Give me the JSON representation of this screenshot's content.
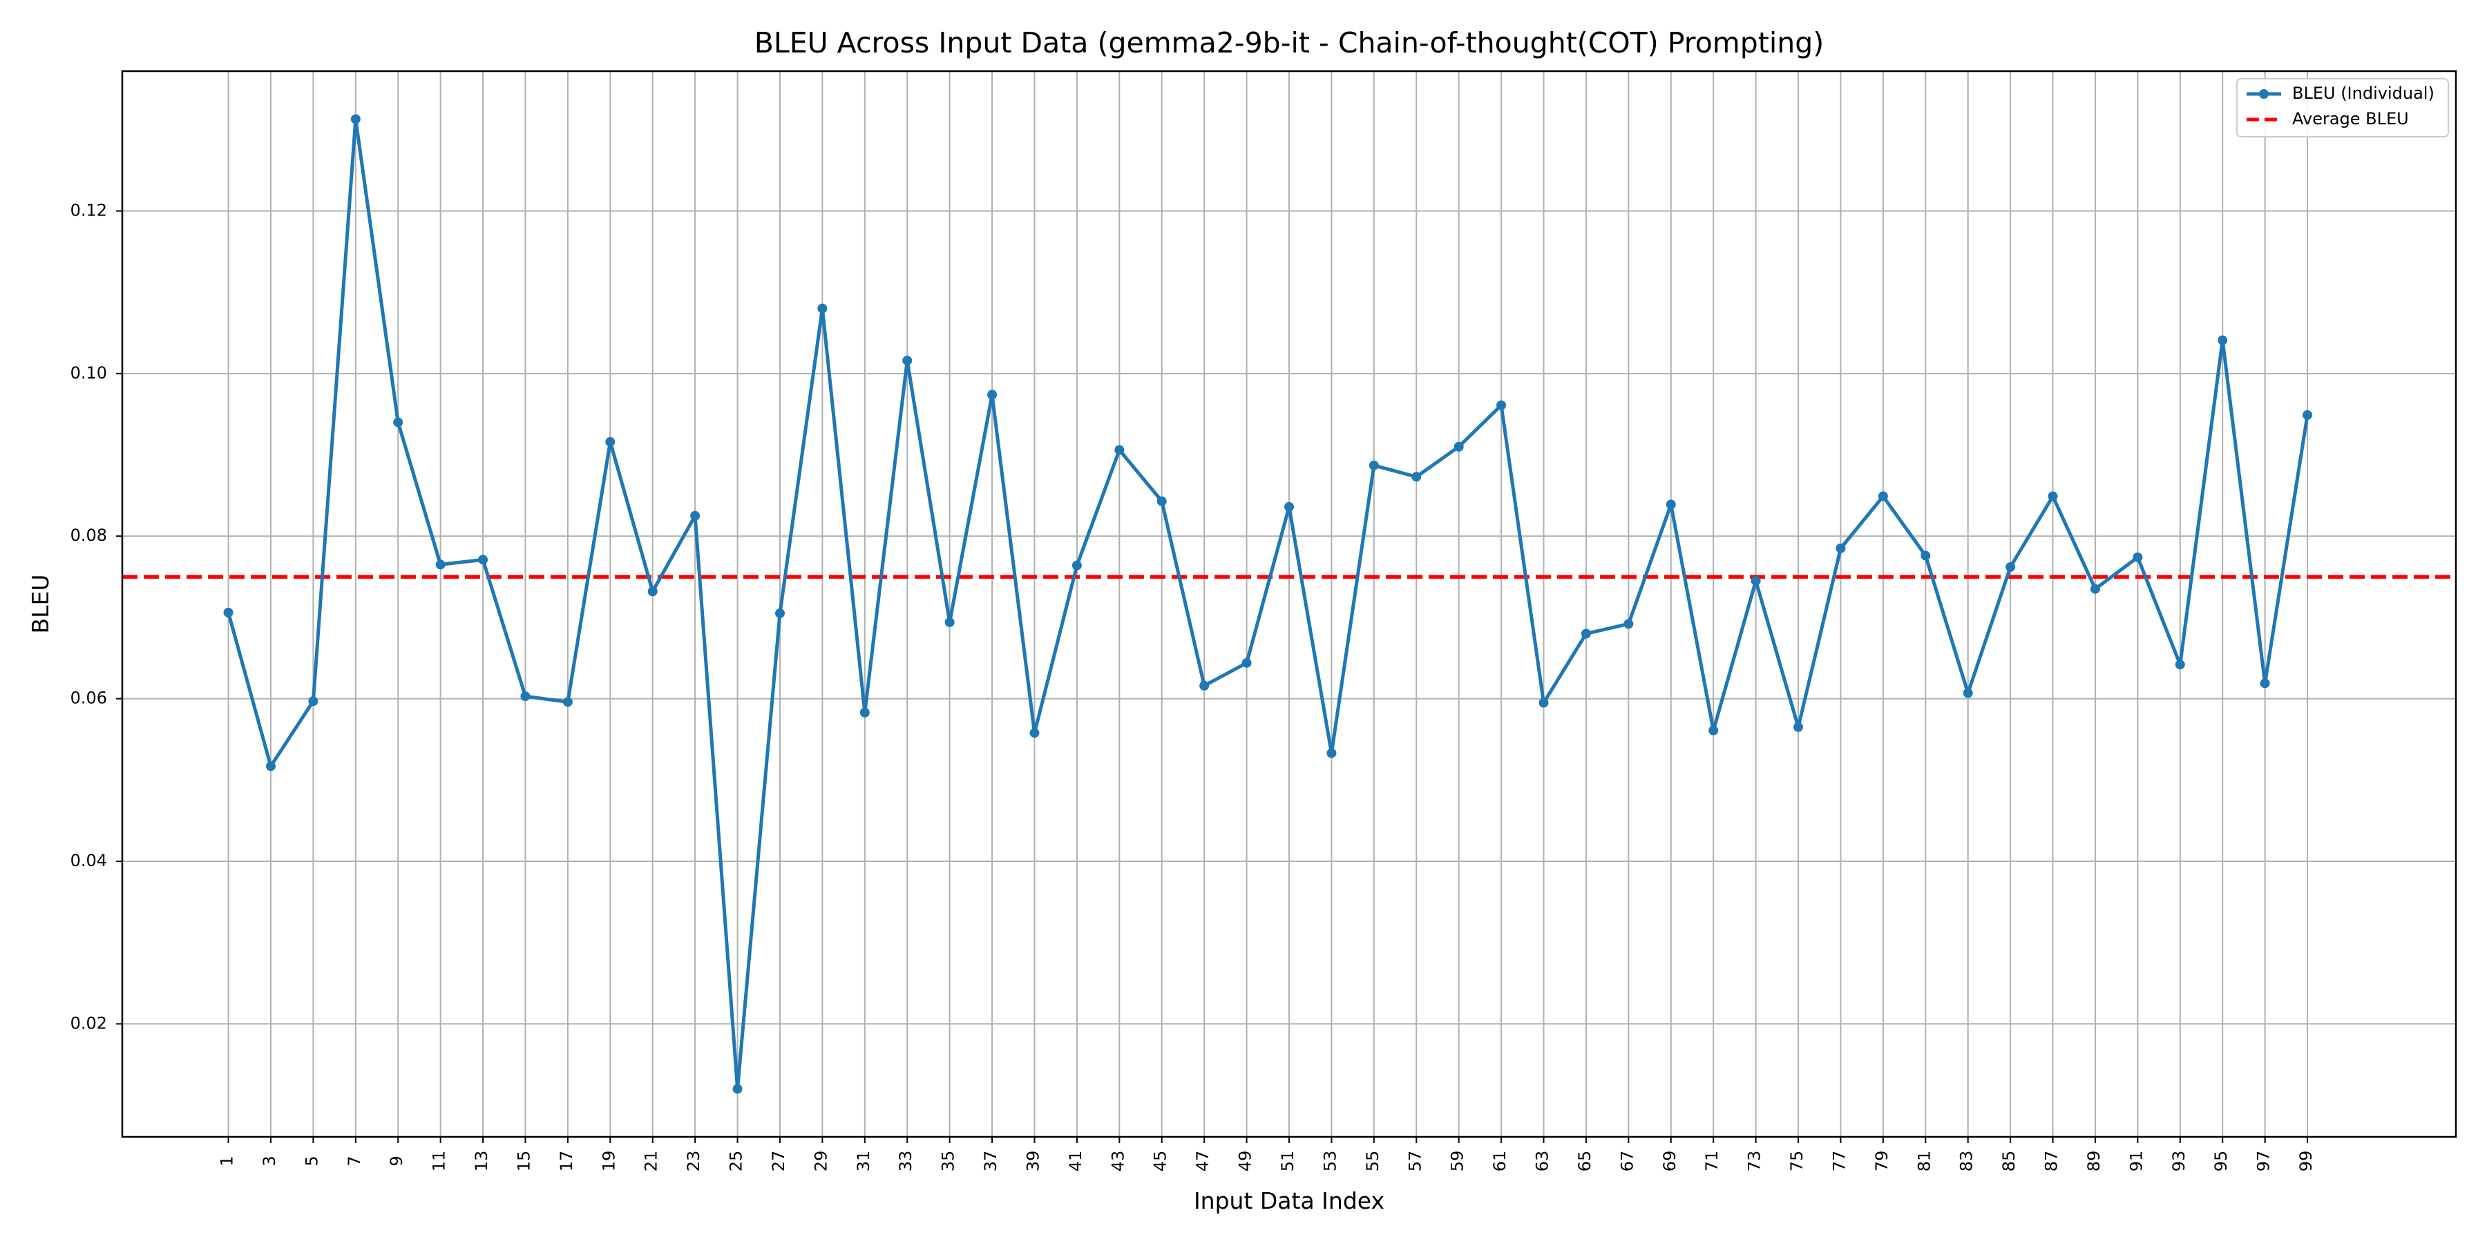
{
  "chart_data": {
    "type": "line",
    "title": "BLEU Across Input Data (gemma2-9b-it - Chain-of-thought(COT) Prompting)",
    "xlabel": "Input Data Index",
    "ylabel": "BLEU",
    "x": [
      1,
      3,
      5,
      7,
      9,
      11,
      13,
      15,
      17,
      19,
      21,
      23,
      25,
      27,
      29,
      31,
      33,
      35,
      37,
      39,
      41,
      43,
      45,
      47,
      49,
      51,
      53,
      55,
      57,
      59,
      61,
      63,
      65,
      67,
      69,
      71,
      73,
      75,
      77,
      79,
      81,
      83,
      85,
      87,
      89,
      91,
      93,
      95,
      97,
      99
    ],
    "xticks": [
      "1",
      "3",
      "5",
      "7",
      "9",
      "11",
      "13",
      "15",
      "17",
      "19",
      "21",
      "23",
      "25",
      "27",
      "29",
      "31",
      "33",
      "35",
      "37",
      "39",
      "41",
      "43",
      "45",
      "47",
      "49",
      "51",
      "53",
      "55",
      "57",
      "59",
      "61",
      "63",
      "65",
      "67",
      "69",
      "71",
      "73",
      "75",
      "77",
      "79",
      "81",
      "83",
      "85",
      "87",
      "89",
      "91",
      "93",
      "95",
      "97",
      "99"
    ],
    "yticks": [
      "0.02",
      "0.04",
      "0.06",
      "0.08",
      "0.10",
      "0.12"
    ],
    "ytick_values": [
      0.02,
      0.04,
      0.06,
      0.08,
      0.1,
      0.12
    ],
    "xlim": [
      -4.0,
      106.0
    ],
    "ylim": [
      0.0061,
      0.1372
    ],
    "grid": true,
    "legend_position": "top-right",
    "series": [
      {
        "name": "BLEU (Individual)",
        "color": "#1f77b4",
        "style": "solid-with-markers",
        "values": [
          0.0706,
          0.0517,
          0.0597,
          0.1313,
          0.094,
          0.0765,
          0.0771,
          0.0603,
          0.0596,
          0.0916,
          0.0732,
          0.0825,
          0.012,
          0.0705,
          0.108,
          0.0583,
          0.1016,
          0.0694,
          0.0974,
          0.0558,
          0.0764,
          0.0906,
          0.0843,
          0.0616,
          0.0644,
          0.0836,
          0.0533,
          0.0887,
          0.0873,
          0.091,
          0.0961,
          0.0595,
          0.068,
          0.0692,
          0.0839,
          0.0561,
          0.0745,
          0.0565,
          0.0785,
          0.0849,
          0.0776,
          0.0607,
          0.0762,
          0.0849,
          0.0735,
          0.0774,
          0.0642,
          0.1041,
          0.0619,
          0.0949
        ]
      },
      {
        "name": "Average BLEU",
        "color": "#ff0000",
        "style": "dashed",
        "value": 0.075
      }
    ]
  }
}
